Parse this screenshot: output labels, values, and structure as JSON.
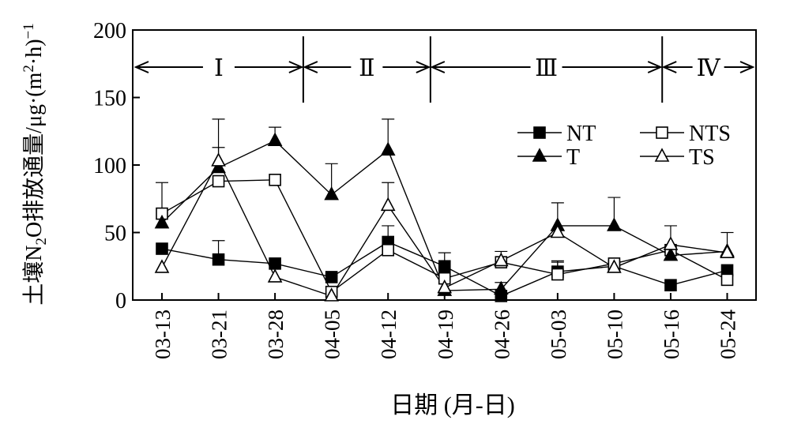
{
  "chart_data": {
    "type": "line",
    "title": "",
    "xlabel": "日期 (月-日)",
    "ylabel_parts": {
      "pre": "土壤N",
      "sub": "2",
      "mid": "O排放通量/μg·(m",
      "sup": "2",
      "post": "·h)",
      "sup2": "−1"
    },
    "ylim": [
      0,
      200
    ],
    "yticks": [
      "0",
      "50",
      "100",
      "150",
      "200"
    ],
    "categories": [
      "03-13",
      "03-21",
      "03-28",
      "04-05",
      "04-12",
      "04-19",
      "04-26",
      "05-03",
      "05-10",
      "05-16",
      "05-24"
    ],
    "grid": false,
    "legend_position": "upper-right",
    "periods": [
      {
        "label": "Ⅰ",
        "start": 0,
        "end": 2.5
      },
      {
        "label": "Ⅱ",
        "start": 2.5,
        "end": 4.75
      },
      {
        "label": "Ⅲ",
        "start": 4.75,
        "end": 8.85
      },
      {
        "label": "Ⅳ",
        "start": 8.85,
        "end": 10.4
      }
    ],
    "series": [
      {
        "name": "NT",
        "marker": "square",
        "filled": true,
        "values": [
          38,
          30,
          27,
          17,
          43,
          25,
          3,
          21,
          25,
          11,
          22
        ],
        "errors": [
          0,
          14,
          0,
          0,
          12,
          10,
          0,
          8,
          0,
          0,
          0
        ]
      },
      {
        "name": "NTS",
        "marker": "square",
        "filled": false,
        "values": [
          64,
          88,
          89,
          6,
          37,
          16,
          28,
          19,
          27,
          37,
          15
        ],
        "errors": [
          23,
          0,
          0,
          0,
          0,
          0,
          8,
          9,
          0,
          0,
          0
        ]
      },
      {
        "name": "T",
        "marker": "triangle",
        "filled": true,
        "values": [
          57,
          98,
          118,
          78,
          111,
          7,
          8,
          55,
          55,
          33,
          36
        ],
        "errors": [
          0,
          36,
          10,
          23,
          23,
          0,
          5,
          17,
          21,
          0,
          14
        ]
      },
      {
        "name": "TS",
        "marker": "triangle",
        "filled": false,
        "values": [
          24,
          103,
          17,
          3,
          70,
          9,
          29,
          50,
          24,
          41,
          35
        ],
        "errors": [
          0,
          10,
          0,
          0,
          17,
          0,
          0,
          0,
          0,
          14,
          0
        ]
      }
    ]
  }
}
